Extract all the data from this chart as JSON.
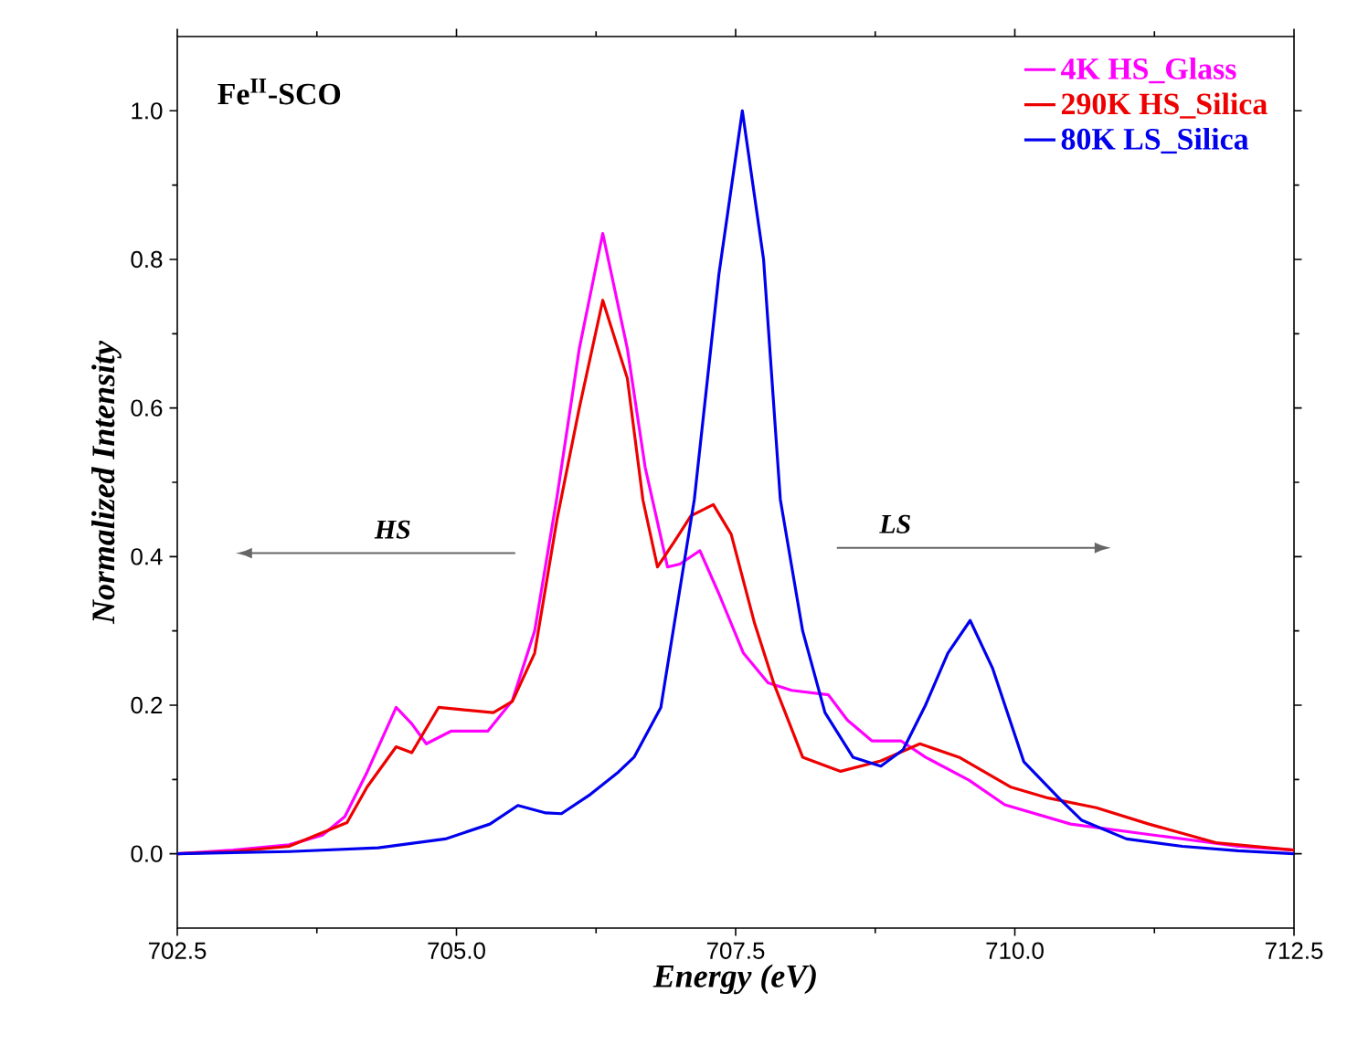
{
  "chart_data": {
    "type": "line",
    "xlabel": "Energy (eV)",
    "ylabel": "Normalized Intensity",
    "xlim": [
      702.5,
      712.5
    ],
    "ylim": [
      -0.1,
      1.1
    ],
    "xticks": [
      {
        "value": 702.5,
        "label": "702.5"
      },
      {
        "value": 705,
        "label": "705.0"
      },
      {
        "value": 707.5,
        "label": "707.5"
      },
      {
        "value": 710,
        "label": "710.0"
      },
      {
        "value": 712.5,
        "label": "712.5"
      }
    ],
    "yticks": [
      {
        "value": 0,
        "label": "0.0"
      },
      {
        "value": 0.2,
        "label": "0.2"
      },
      {
        "value": 0.4,
        "label": "0.4"
      },
      {
        "value": 0.6,
        "label": "0.6"
      },
      {
        "value": 0.8,
        "label": "0.8"
      },
      {
        "value": 1,
        "label": "1.0"
      }
    ],
    "grid": false,
    "legend": "top right",
    "marker": "none",
    "line_style": "solid",
    "annotations": [
      "Fe$^{II}$-SCO",
      "HS",
      "LS"
    ],
    "series": [
      {
        "name": "4K HS_Glass",
        "color": "#ff00ff",
        "x": [
          702.5,
          703.0,
          703.5,
          703.8,
          704.0,
          704.2,
          704.46,
          704.6,
          704.73,
          704.95,
          705.28,
          705.5,
          705.7,
          705.9,
          706.1,
          706.31,
          706.53,
          706.69,
          706.89,
          707.0,
          707.18,
          707.35,
          707.57,
          707.79,
          708.0,
          708.33,
          708.5,
          708.72,
          708.98,
          709.2,
          709.59,
          709.91,
          710.5,
          711.0,
          711.5,
          712.0,
          712.5
        ],
        "values": [
          0.0,
          0.005,
          0.012,
          0.025,
          0.05,
          0.11,
          0.197,
          0.175,
          0.148,
          0.165,
          0.165,
          0.206,
          0.3,
          0.48,
          0.68,
          0.835,
          0.68,
          0.52,
          0.386,
          0.39,
          0.408,
          0.35,
          0.27,
          0.23,
          0.22,
          0.214,
          0.18,
          0.152,
          0.152,
          0.13,
          0.099,
          0.066,
          0.04,
          0.03,
          0.02,
          0.01,
          0.005
        ]
      },
      {
        "name": "290K HS_Silica",
        "color": "#ee0000",
        "x": [
          702.5,
          703.0,
          703.5,
          704.02,
          704.2,
          704.46,
          704.6,
          704.84,
          705.05,
          705.33,
          705.5,
          705.7,
          705.9,
          706.1,
          706.31,
          706.53,
          706.67,
          706.8,
          706.95,
          707.1,
          707.3,
          707.46,
          707.67,
          707.84,
          708.1,
          708.44,
          708.8,
          709.15,
          709.5,
          709.96,
          710.3,
          710.73,
          711.2,
          711.8,
          712.5
        ],
        "values": [
          0.0,
          0.003,
          0.01,
          0.042,
          0.09,
          0.144,
          0.136,
          0.197,
          0.194,
          0.19,
          0.205,
          0.27,
          0.45,
          0.6,
          0.745,
          0.64,
          0.476,
          0.386,
          0.42,
          0.455,
          0.47,
          0.43,
          0.31,
          0.23,
          0.13,
          0.111,
          0.125,
          0.148,
          0.13,
          0.09,
          0.075,
          0.062,
          0.04,
          0.015,
          0.005
        ]
      },
      {
        "name": "80K LS_Silica",
        "color": "#0000ee",
        "x": [
          702.5,
          703.5,
          704.3,
          704.9,
          705.3,
          705.55,
          705.8,
          705.94,
          706.2,
          706.45,
          706.59,
          706.83,
          707.13,
          707.35,
          707.56,
          707.75,
          707.9,
          708.1,
          708.3,
          708.55,
          708.8,
          709.0,
          709.2,
          709.4,
          709.6,
          709.8,
          710.08,
          710.4,
          710.6,
          711.0,
          711.5,
          712.0,
          712.5
        ],
        "values": [
          0.0,
          0.003,
          0.008,
          0.02,
          0.04,
          0.065,
          0.055,
          0.054,
          0.08,
          0.11,
          0.13,
          0.197,
          0.477,
          0.78,
          1.0,
          0.8,
          0.477,
          0.3,
          0.19,
          0.13,
          0.118,
          0.14,
          0.2,
          0.27,
          0.314,
          0.25,
          0.124,
          0.074,
          0.045,
          0.02,
          0.01,
          0.004,
          0.0
        ]
      }
    ]
  }
}
